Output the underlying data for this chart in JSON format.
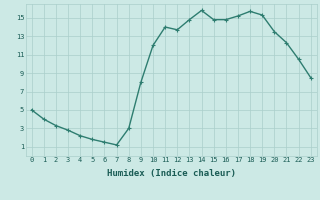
{
  "x": [
    0,
    1,
    2,
    3,
    4,
    5,
    6,
    7,
    8,
    9,
    10,
    11,
    12,
    13,
    14,
    15,
    16,
    17,
    18,
    19,
    20,
    21,
    22,
    23
  ],
  "y": [
    5,
    4,
    3.3,
    2.8,
    2.2,
    1.8,
    1.5,
    1.2,
    3.0,
    8.0,
    12.0,
    14.0,
    13.7,
    14.8,
    15.8,
    14.8,
    14.8,
    15.2,
    15.7,
    15.3,
    13.5,
    12.3,
    10.5,
    8.5
  ],
  "line_color": "#2e7d70",
  "marker": "+",
  "marker_size": 3,
  "bg_color": "#cce9e5",
  "grid_color": "#aacfcb",
  "xlabel": "Humidex (Indice chaleur)",
  "xlim": [
    -0.5,
    23.5
  ],
  "ylim": [
    0,
    16.5
  ],
  "xticks": [
    0,
    1,
    2,
    3,
    4,
    5,
    6,
    7,
    8,
    9,
    10,
    11,
    12,
    13,
    14,
    15,
    16,
    17,
    18,
    19,
    20,
    21,
    22,
    23
  ],
  "yticks": [
    1,
    3,
    5,
    7,
    9,
    11,
    13,
    15
  ],
  "xlabel_color": "#1a5c55",
  "tick_color": "#1a5c55",
  "linewidth": 1.0,
  "tick_fontsize": 5.0,
  "xlabel_fontsize": 6.5
}
